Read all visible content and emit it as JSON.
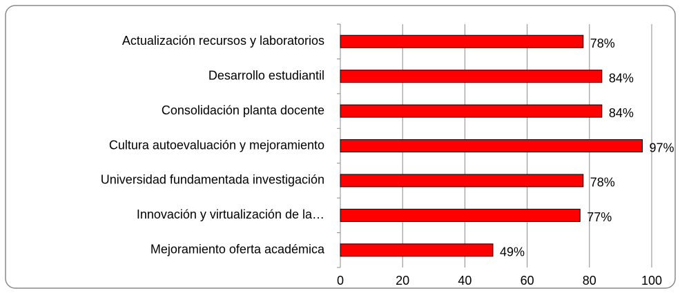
{
  "chart_data": {
    "type": "bar",
    "orientation": "horizontal",
    "categories": [
      "Actualización recursos y laboratorios",
      "Desarrollo estudiantil",
      "Consolidación planta docente",
      "Cultura autoevaluación y mejoramiento",
      "Universidad fundamentada investigación",
      "Innovación y virtualización de la…",
      "Mejoramiento oferta académica"
    ],
    "values": [
      78,
      84,
      84,
      97,
      78,
      77,
      49
    ],
    "value_labels": [
      "78%",
      "84%",
      "84%",
      "97%",
      "78%",
      "77%",
      "49%"
    ],
    "color": "#ff0000",
    "xlim": [
      0,
      100
    ],
    "xticks": [
      0,
      20,
      40,
      60,
      80,
      100
    ],
    "grid": true
  }
}
